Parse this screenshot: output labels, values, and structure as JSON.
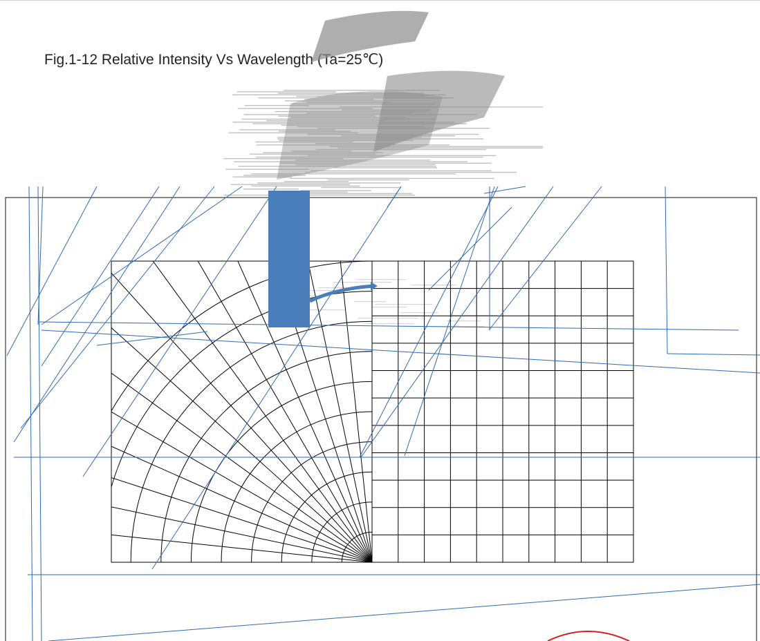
{
  "title": "Fig.1-12 Relative Intensity Vs Wavelength (Ta=25℃)",
  "chart_data": {
    "type": "polar",
    "polar_grid": {
      "angular_divisions": 15,
      "radial_rings": 10,
      "rect_grid_columns": 10,
      "rect_grid_rows": 11
    }
  },
  "colors": {
    "grid": "#000000",
    "overlay_lines": "#2f6ab0",
    "marker_bar": "#4a7ebb",
    "scan_gray": "#8c8c8c",
    "ellipse": "#d02020"
  }
}
